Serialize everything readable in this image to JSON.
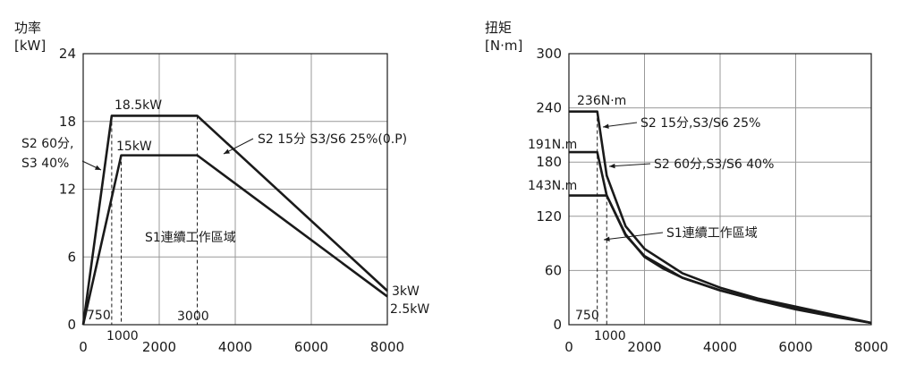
{
  "chart_data": [
    {
      "type": "line",
      "ylabel": "功率",
      "yunit": "[kW]",
      "xlim": [
        0,
        8000
      ],
      "ylim": [
        0,
        24
      ],
      "xticks": [
        0,
        2000,
        4000,
        6000,
        8000
      ],
      "yticks": [
        0,
        6,
        12,
        18,
        24
      ],
      "grid": true,
      "series": [
        {
          "name": "S2 15分 S3/S6 25%(0.P)",
          "x": [
            0,
            750,
            3000,
            8000
          ],
          "y": [
            0,
            18.5,
            18.5,
            3
          ]
        },
        {
          "name": "S2 60分, S3 40%",
          "x": [
            0,
            1000,
            3000,
            8000
          ],
          "y": [
            0,
            15,
            15,
            2.5
          ]
        }
      ],
      "vlines": [
        750,
        1000,
        3000
      ],
      "annotations": {
        "peak1": "18.5kW",
        "peak2": "15kW",
        "s2_60": "S2 60分,",
        "s3_40": "S3 40%",
        "s2_15": "S2  15分 S3/S6 25%(0.P)",
        "s1": "S1連續工作區域",
        "end1": "3kW",
        "end2": "2.5kW",
        "x750": "750",
        "x1000": "1000",
        "x3000": "3000"
      }
    },
    {
      "type": "line",
      "ylabel": "扭矩",
      "yunit": "[N·m]",
      "xlim": [
        0,
        8000
      ],
      "ylim": [
        0,
        300
      ],
      "xticks": [
        0,
        2000,
        4000,
        6000,
        8000
      ],
      "yticks": [
        0,
        60,
        120,
        180,
        240,
        300
      ],
      "grid": true,
      "series": [
        {
          "name": "S2 15分,S3/S6 25%",
          "x": [
            0,
            750,
            1000,
            1500,
            2000,
            3000,
            4000,
            5000,
            6000,
            7000,
            8000
          ],
          "y": [
            236,
            236,
            165,
            109,
            84,
            57,
            41,
            29,
            20,
            11,
            2
          ]
        },
        {
          "name": "S2 60分,S3/S6 40%",
          "x": [
            0,
            750,
            1000,
            1500,
            2000,
            3000,
            4000,
            5000,
            6000,
            7000,
            8000
          ],
          "y": [
            191,
            191,
            143,
            99,
            76,
            52,
            38,
            27,
            18,
            10,
            2
          ]
        },
        {
          "name": "S1連續工作區域",
          "x": [
            0,
            1000,
            1500,
            2000,
            2500,
            3000,
            4000,
            5000,
            6000,
            7000,
            8000
          ],
          "y": [
            143,
            143,
            100,
            75,
            62,
            52,
            38,
            27,
            17,
            9,
            2
          ]
        }
      ],
      "vlines": [
        750,
        1000
      ],
      "annotations": {
        "t236": "236N·m",
        "t191": "191N.m",
        "t143": "143N.m",
        "l1": "S2 15分,S3/S6 25%",
        "l2": "S2 60分,S3/S6 40%",
        "l3": "S1連續工作區域",
        "x750": "750",
        "x1000": "1000"
      }
    }
  ]
}
